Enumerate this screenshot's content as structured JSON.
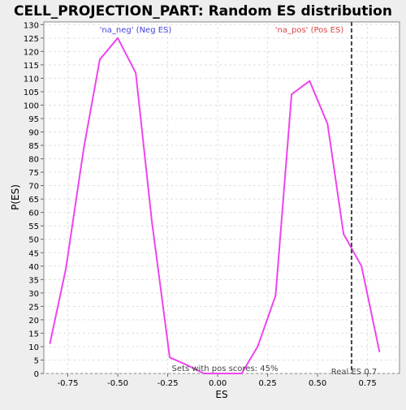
{
  "chart_data": {
    "type": "line",
    "title": "CELL_PROJECTION_PART: Random ES distribution",
    "xlabel": "ES",
    "ylabel": "P(ES)",
    "xlim": [
      -0.87,
      0.91
    ],
    "ylim": [
      0,
      131
    ],
    "x_ticks": [
      -0.75,
      -0.5,
      -0.25,
      0.0,
      0.25,
      0.5,
      0.75
    ],
    "x_tick_labels": [
      "-0.75",
      "-0.50",
      "-0.25",
      "0.00",
      "0.25",
      "0.50",
      "0.75"
    ],
    "y_ticks": [
      0,
      5,
      10,
      15,
      20,
      25,
      30,
      35,
      40,
      45,
      50,
      55,
      60,
      65,
      70,
      75,
      80,
      85,
      90,
      95,
      100,
      105,
      110,
      115,
      120,
      125,
      130
    ],
    "grid": true,
    "series": [
      {
        "color": "#ee44ee",
        "x": [
          -0.84,
          -0.76,
          -0.67,
          -0.59,
          -0.5,
          -0.41,
          -0.33,
          -0.24,
          -0.15,
          -0.07,
          0.03,
          0.12,
          0.2,
          0.29,
          0.37,
          0.46,
          0.55,
          0.63,
          0.72,
          0.81
        ],
        "y": [
          11,
          39,
          84,
          117,
          125,
          112,
          57,
          6,
          3,
          0,
          0,
          0,
          10,
          29,
          104,
          109,
          93,
          52,
          40,
          8
        ]
      }
    ],
    "annotations": {
      "neg_label": "'na_neg' (Neg ES)",
      "pos_label": "'na_pos' (Pos ES)",
      "sets_text": "Sets with pos scores: 45%",
      "real_es_text": "Real ES 0.7",
      "real_es_value": 0.67,
      "neg_color": "#4444dd",
      "pos_color": "#dd4444"
    }
  }
}
